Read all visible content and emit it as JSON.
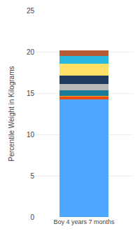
{
  "chart_data": {
    "type": "bar",
    "stacked": true,
    "categories": [
      "Boy 4 years 7 months"
    ],
    "series": [
      {
        "color": "#4da6ff",
        "values": [
          14.2
        ]
      },
      {
        "color": "#e84a10",
        "values": [
          0.35
        ]
      },
      {
        "color": "#f5a623",
        "values": [
          0.15
        ]
      },
      {
        "color": "#1a7a99",
        "values": [
          0.65
        ]
      },
      {
        "color": "#b8b8b8",
        "values": [
          0.75
        ]
      },
      {
        "color": "#1e3a5f",
        "values": [
          1.05
        ]
      },
      {
        "color": "#ffe066",
        "values": [
          1.45
        ]
      },
      {
        "color": "#29b8e0",
        "values": [
          0.85
        ]
      },
      {
        "color": "#b85c38",
        "values": [
          0.75
        ]
      }
    ],
    "ylabel": "Percentile Weight in Kilograms",
    "ylim": [
      0,
      25
    ],
    "yticks": [
      0,
      5,
      10,
      15,
      20,
      25
    ],
    "grid": true
  }
}
